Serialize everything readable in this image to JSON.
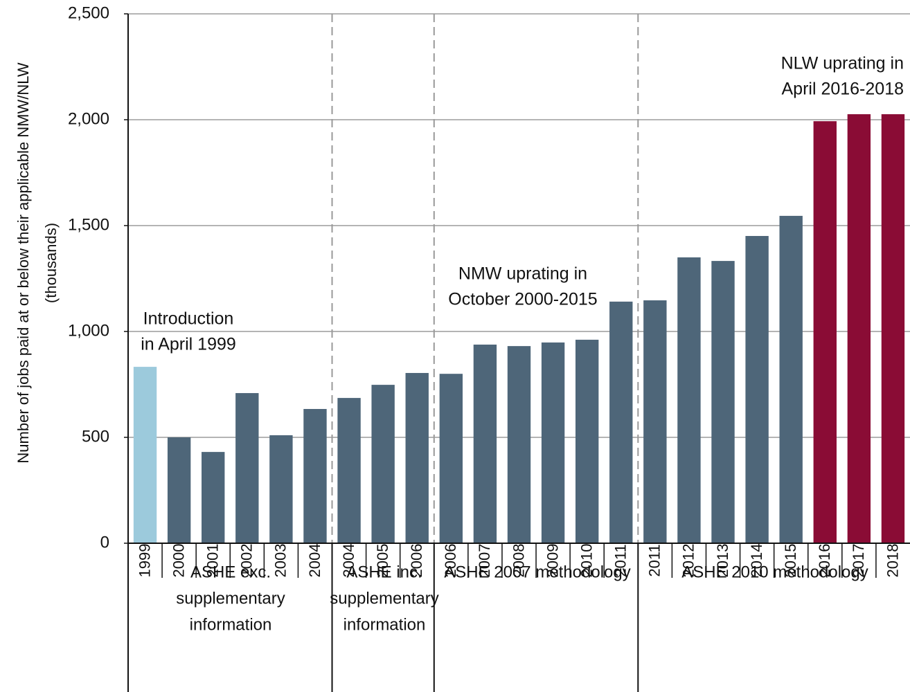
{
  "chart_data": {
    "type": "bar",
    "y_label": [
      "Number of jobs paid at or below  their applicable  NMW/NLW",
      "(thousands)"
    ],
    "categories": [
      "1999",
      "2000",
      "2001",
      "2002",
      "2003",
      "2004",
      "2004",
      "2005",
      "2006",
      "2006",
      "2007",
      "2008",
      "2009",
      "2010",
      "2011",
      "2011",
      "2012",
      "2013",
      "2014",
      "2015",
      "2016",
      "2017",
      "2018"
    ],
    "values": [
      833,
      500,
      431,
      709,
      510,
      634,
      686,
      748,
      804,
      800,
      938,
      931,
      948,
      961,
      1141,
      1147,
      1350,
      1333,
      1451,
      1546,
      1993,
      2026,
      2026
    ],
    "colors": [
      "#9ccadc",
      "#4e6679",
      "#4e6679",
      "#4e6679",
      "#4e6679",
      "#4e6679",
      "#4e6679",
      "#4e6679",
      "#4e6679",
      "#4e6679",
      "#4e6679",
      "#4e6679",
      "#4e6679",
      "#4e6679",
      "#4e6679",
      "#4e6679",
      "#4e6679",
      "#4e6679",
      "#4e6679",
      "#4e6679",
      "#8a0c35",
      "#8a0c35",
      "#8a0c35"
    ],
    "ylim": [
      0,
      2500
    ],
    "yticks": [
      0,
      500,
      {
        "value": 1000,
        "label": "1,000"
      },
      {
        "value": 1500,
        "label": "1,500"
      },
      {
        "value": 2000,
        "label": "2,000"
      },
      {
        "value": 2500,
        "label": "2,500"
      }
    ],
    "grid": true,
    "annotations": [
      {
        "text": [
          "Introduction",
          "in April 1999"
        ],
        "color": "#9ccadc"
      },
      {
        "text": [
          "NMW uprating in",
          "October 2000-2015"
        ],
        "color": "#4e6679"
      },
      {
        "text": [
          "NLW uprating in",
          "April 2016-2018"
        ],
        "color": "#8a0c35"
      }
    ],
    "groups": [
      [
        "ASHE exc.",
        "supplementary",
        "information"
      ],
      [
        "ASHE inc.",
        "supplementary",
        "information"
      ],
      [
        "ASHE 2007 methodology"
      ],
      [
        "ASHE 2010 methodology"
      ]
    ]
  }
}
